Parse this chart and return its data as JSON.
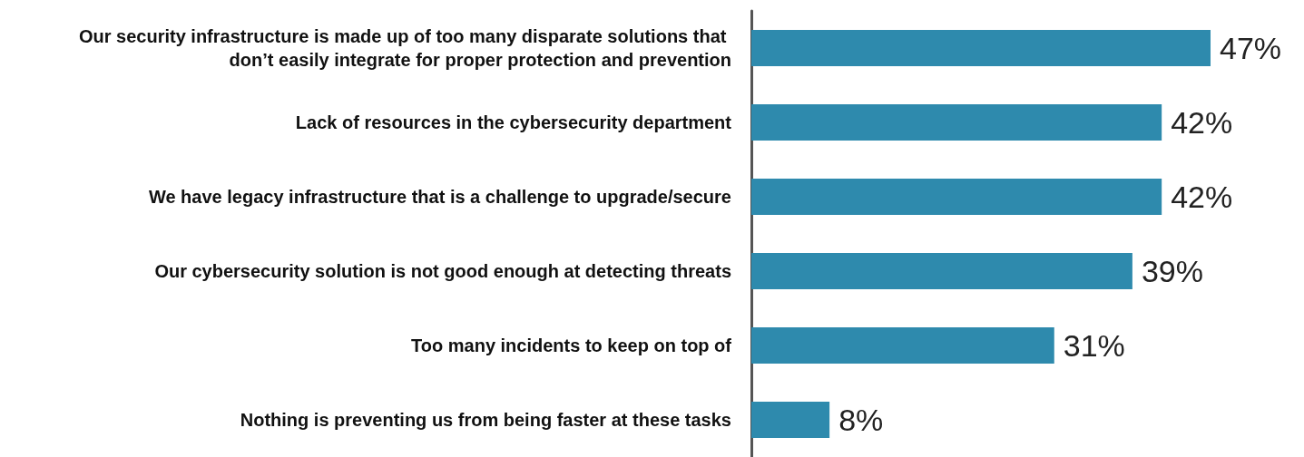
{
  "chart_data": {
    "type": "bar",
    "orientation": "horizontal",
    "categories": [
      "Our security infrastructure is made up of too many disparate solutions that don’t easily integrate for proper protection and prevention",
      "Lack of resources in the cybersecurity department",
      "We have legacy infrastructure that is a challenge to upgrade/secure",
      "Our cybersecurity solution is not good enough at detecting threats",
      "Too many incidents to keep on top of",
      "Nothing is preventing us from being faster at these tasks"
    ],
    "values": [
      47,
      42,
      42,
      39,
      31,
      8
    ],
    "value_labels": [
      "47%",
      "42%",
      "42%",
      "39%",
      "31%",
      "8%"
    ],
    "color": "#2e8aad",
    "grid": false
  }
}
